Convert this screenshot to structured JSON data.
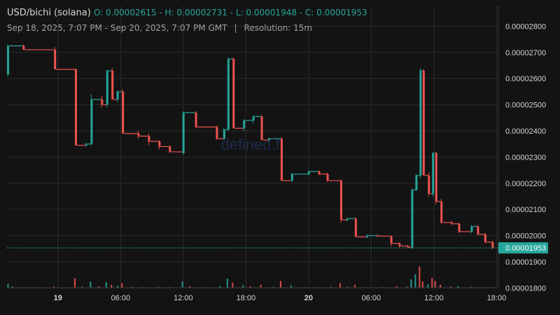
{
  "header": {
    "symbol": "USD/bichi (solana)",
    "ohlc": "O: 0.00002615 - H: 0.00002731 - L: 0.00001948 - C: 0.00001953",
    "range": "Sep 18, 2025, 7:07 PM - Sep 20, 2025, 7:07 PM GMT",
    "separator": "|",
    "resolution": "Resolution: 15m"
  },
  "watermark": "defined.fi",
  "colors": {
    "up": "#26a69a",
    "down": "#ef5350",
    "background": "#131313",
    "grid": "#2a2a2a"
  },
  "chart_data": {
    "type": "candlestick",
    "resolution": "15m",
    "ylim": [
      1.71e-05,
      2.86e-05
    ],
    "y_ticks": [
      "0.00002800",
      "0.00002700",
      "0.00002600",
      "0.00002500",
      "0.00002400",
      "0.00002300",
      "0.00002200",
      "0.00002100",
      "0.00002000",
      "0.00001900",
      "0.00001800"
    ],
    "y_tick_values": [
      2.8e-05,
      2.7e-05,
      2.6e-05,
      2.5e-05,
      2.4e-05,
      2.3e-05,
      2.2e-05,
      2.1e-05,
      2e-05,
      1.9e-05,
      1.8e-05
    ],
    "x_ticks": [
      "19",
      "06:00",
      "12:00",
      "18:00",
      "20",
      "06:00",
      "12:00",
      "18:00"
    ],
    "x_tick_hours": [
      4.88,
      10.88,
      16.88,
      22.88,
      28.88,
      34.88,
      40.88,
      46.88
    ],
    "last_price": "0.00001953",
    "last_price_value": 1.953e-05,
    "candles": [
      {
        "t": 0,
        "o": 2.615,
        "h": 2.731,
        "l": 2.61,
        "c": 2.725
      },
      {
        "t": 1.5,
        "o": 2.725,
        "h": 2.73,
        "l": 2.71,
        "c": 2.71
      },
      {
        "t": 4.5,
        "o": 2.71,
        "h": 2.72,
        "l": 2.635,
        "c": 2.635
      },
      {
        "t": 6.5,
        "o": 2.635,
        "h": 2.64,
        "l": 2.345,
        "c": 2.345
      },
      {
        "t": 7.5,
        "o": 2.345,
        "h": 2.355,
        "l": 2.34,
        "c": 2.35
      },
      {
        "t": 8.0,
        "o": 2.35,
        "h": 2.54,
        "l": 2.345,
        "c": 2.52
      },
      {
        "t": 9.0,
        "o": 2.52,
        "h": 2.535,
        "l": 2.49,
        "c": 2.5
      },
      {
        "t": 9.5,
        "o": 2.5,
        "h": 2.635,
        "l": 2.49,
        "c": 2.63
      },
      {
        "t": 10.0,
        "o": 2.63,
        "h": 2.64,
        "l": 2.52,
        "c": 2.52
      },
      {
        "t": 10.5,
        "o": 2.52,
        "h": 2.555,
        "l": 2.51,
        "c": 2.55
      },
      {
        "t": 11.0,
        "o": 2.55,
        "h": 2.56,
        "l": 2.39,
        "c": 2.39
      },
      {
        "t": 12.5,
        "o": 2.39,
        "h": 2.4,
        "l": 2.37,
        "c": 2.38
      },
      {
        "t": 13.5,
        "o": 2.38,
        "h": 2.39,
        "l": 2.345,
        "c": 2.36
      },
      {
        "t": 14.5,
        "o": 2.36,
        "h": 2.365,
        "l": 2.33,
        "c": 2.34
      },
      {
        "t": 15.5,
        "o": 2.34,
        "h": 2.345,
        "l": 2.315,
        "c": 2.32
      },
      {
        "t": 16.8,
        "o": 2.315,
        "h": 2.475,
        "l": 2.31,
        "c": 2.47
      },
      {
        "t": 18.0,
        "o": 2.47,
        "h": 2.475,
        "l": 2.41,
        "c": 2.415
      },
      {
        "t": 20.0,
        "o": 2.415,
        "h": 2.42,
        "l": 2.365,
        "c": 2.37
      },
      {
        "t": 20.7,
        "o": 2.37,
        "h": 2.41,
        "l": 2.365,
        "c": 2.405
      },
      {
        "t": 21.1,
        "o": 2.405,
        "h": 2.68,
        "l": 2.4,
        "c": 2.675
      },
      {
        "t": 21.6,
        "o": 2.675,
        "h": 2.68,
        "l": 2.41,
        "c": 2.41
      },
      {
        "t": 22.6,
        "o": 2.41,
        "h": 2.445,
        "l": 2.4,
        "c": 2.44
      },
      {
        "t": 23.5,
        "o": 2.44,
        "h": 2.46,
        "l": 2.43,
        "c": 2.455
      },
      {
        "t": 24.3,
        "o": 2.455,
        "h": 2.46,
        "l": 2.365,
        "c": 2.365
      },
      {
        "t": 25.0,
        "o": 2.365,
        "h": 2.375,
        "l": 2.36,
        "c": 2.37
      },
      {
        "t": 26.2,
        "o": 2.37,
        "h": 2.375,
        "l": 2.21,
        "c": 2.21
      },
      {
        "t": 27.2,
        "o": 2.21,
        "h": 2.24,
        "l": 2.205,
        "c": 2.235
      },
      {
        "t": 28.8,
        "o": 2.235,
        "h": 2.25,
        "l": 2.23,
        "c": 2.245
      },
      {
        "t": 29.8,
        "o": 2.245,
        "h": 2.25,
        "l": 2.23,
        "c": 2.235
      },
      {
        "t": 30.6,
        "o": 2.235,
        "h": 2.24,
        "l": 2.205,
        "c": 2.21
      },
      {
        "t": 31.9,
        "o": 2.21,
        "h": 2.215,
        "l": 2.05,
        "c": 2.06
      },
      {
        "t": 32.5,
        "o": 2.06,
        "h": 2.07,
        "l": 2.055,
        "c": 2.065
      },
      {
        "t": 33.3,
        "o": 2.065,
        "h": 2.07,
        "l": 1.995,
        "c": 1.995
      },
      {
        "t": 34.4,
        "o": 1.995,
        "h": 2.005,
        "l": 1.99,
        "c": 2.0
      },
      {
        "t": 35.4,
        "o": 2.0,
        "h": 2.005,
        "l": 1.995,
        "c": 1.998
      },
      {
        "t": 36.7,
        "o": 1.998,
        "h": 2.0,
        "l": 1.96,
        "c": 1.97
      },
      {
        "t": 37.5,
        "o": 1.97,
        "h": 1.975,
        "l": 1.955,
        "c": 1.96
      },
      {
        "t": 38.3,
        "o": 1.96,
        "h": 1.965,
        "l": 1.95,
        "c": 1.955
      },
      {
        "t": 38.7,
        "o": 1.955,
        "h": 2.18,
        "l": 1.95,
        "c": 2.175
      },
      {
        "t": 39.1,
        "o": 2.175,
        "h": 2.235,
        "l": 2.17,
        "c": 2.23
      },
      {
        "t": 39.5,
        "o": 2.23,
        "h": 2.64,
        "l": 2.22,
        "c": 2.63
      },
      {
        "t": 39.8,
        "o": 2.63,
        "h": 2.635,
        "l": 2.23,
        "c": 2.23
      },
      {
        "t": 40.3,
        "o": 2.23,
        "h": 2.24,
        "l": 2.15,
        "c": 2.16
      },
      {
        "t": 40.7,
        "o": 2.16,
        "h": 2.32,
        "l": 2.15,
        "c": 2.315
      },
      {
        "t": 41.0,
        "o": 2.315,
        "h": 2.32,
        "l": 2.12,
        "c": 2.13
      },
      {
        "t": 41.5,
        "o": 2.13,
        "h": 2.14,
        "l": 2.045,
        "c": 2.05
      },
      {
        "t": 42.5,
        "o": 2.05,
        "h": 2.055,
        "l": 2.04,
        "c": 2.045
      },
      {
        "t": 43.2,
        "o": 2.045,
        "h": 2.05,
        "l": 2.01,
        "c": 2.015
      },
      {
        "t": 44.4,
        "o": 2.015,
        "h": 2.04,
        "l": 2.01,
        "c": 2.035
      },
      {
        "t": 45.0,
        "o": 2.035,
        "h": 2.04,
        "l": 2.0,
        "c": 2.005
      },
      {
        "t": 45.7,
        "o": 2.005,
        "h": 2.01,
        "l": 1.97,
        "c": 1.975
      },
      {
        "t": 46.4,
        "o": 1.975,
        "h": 1.98,
        "l": 1.948,
        "c": 1.953
      }
    ],
    "volume": [
      {
        "t": 0.1,
        "v": 0.35,
        "up": true
      },
      {
        "t": 0.5,
        "v": 0.12,
        "up": true
      },
      {
        "t": 1.2,
        "v": 0.05,
        "up": false
      },
      {
        "t": 2.0,
        "v": 0.05,
        "up": true
      },
      {
        "t": 3.0,
        "v": 0.05,
        "up": false
      },
      {
        "t": 4.5,
        "v": 0.1,
        "up": false
      },
      {
        "t": 6.5,
        "v": 0.85,
        "up": false
      },
      {
        "t": 7.2,
        "v": 0.1,
        "up": true
      },
      {
        "t": 8.0,
        "v": 0.55,
        "up": true
      },
      {
        "t": 8.8,
        "v": 0.12,
        "up": false
      },
      {
        "t": 9.5,
        "v": 0.5,
        "up": true
      },
      {
        "t": 10.0,
        "v": 0.25,
        "up": false
      },
      {
        "t": 10.6,
        "v": 0.15,
        "up": true
      },
      {
        "t": 11.0,
        "v": 0.4,
        "up": false
      },
      {
        "t": 12.0,
        "v": 0.08,
        "up": false
      },
      {
        "t": 13.0,
        "v": 0.05,
        "up": true
      },
      {
        "t": 14.5,
        "v": 0.08,
        "up": false
      },
      {
        "t": 15.5,
        "v": 0.05,
        "up": false
      },
      {
        "t": 16.8,
        "v": 0.55,
        "up": true
      },
      {
        "t": 17.5,
        "v": 0.12,
        "up": false
      },
      {
        "t": 19.0,
        "v": 0.05,
        "up": true
      },
      {
        "t": 20.4,
        "v": 0.15,
        "up": true
      },
      {
        "t": 21.1,
        "v": 0.82,
        "up": true
      },
      {
        "t": 21.6,
        "v": 0.45,
        "up": false
      },
      {
        "t": 22.6,
        "v": 0.22,
        "up": true
      },
      {
        "t": 23.3,
        "v": 0.12,
        "up": false
      },
      {
        "t": 24.3,
        "v": 0.25,
        "up": false
      },
      {
        "t": 25.5,
        "v": 0.08,
        "up": true
      },
      {
        "t": 26.2,
        "v": 0.6,
        "up": false
      },
      {
        "t": 27.2,
        "v": 0.2,
        "up": true
      },
      {
        "t": 28.5,
        "v": 0.05,
        "up": false
      },
      {
        "t": 29.7,
        "v": 0.05,
        "up": false
      },
      {
        "t": 31.0,
        "v": 0.08,
        "up": true
      },
      {
        "t": 31.9,
        "v": 0.4,
        "up": false
      },
      {
        "t": 32.6,
        "v": 0.1,
        "up": true
      },
      {
        "t": 33.3,
        "v": 0.25,
        "up": false
      },
      {
        "t": 34.4,
        "v": 0.05,
        "up": true
      },
      {
        "t": 36.0,
        "v": 0.05,
        "up": false
      },
      {
        "t": 37.3,
        "v": 0.12,
        "up": false
      },
      {
        "t": 38.3,
        "v": 0.1,
        "up": true
      },
      {
        "t": 38.7,
        "v": 0.75,
        "up": true
      },
      {
        "t": 39.1,
        "v": 1.2,
        "up": true
      },
      {
        "t": 39.5,
        "v": 1.9,
        "up": false
      },
      {
        "t": 39.8,
        "v": 0.55,
        "up": false
      },
      {
        "t": 40.3,
        "v": 0.3,
        "up": true
      },
      {
        "t": 40.7,
        "v": 0.85,
        "up": false
      },
      {
        "t": 41.0,
        "v": 0.6,
        "up": false
      },
      {
        "t": 41.5,
        "v": 0.25,
        "up": false
      },
      {
        "t": 42.5,
        "v": 0.1,
        "up": false
      },
      {
        "t": 43.2,
        "v": 0.15,
        "up": true
      },
      {
        "t": 44.4,
        "v": 0.08,
        "up": false
      },
      {
        "t": 45.0,
        "v": 0.05,
        "up": false
      },
      {
        "t": 45.7,
        "v": 0.05,
        "up": false
      },
      {
        "t": 46.4,
        "v": 0.05,
        "up": false
      }
    ]
  }
}
